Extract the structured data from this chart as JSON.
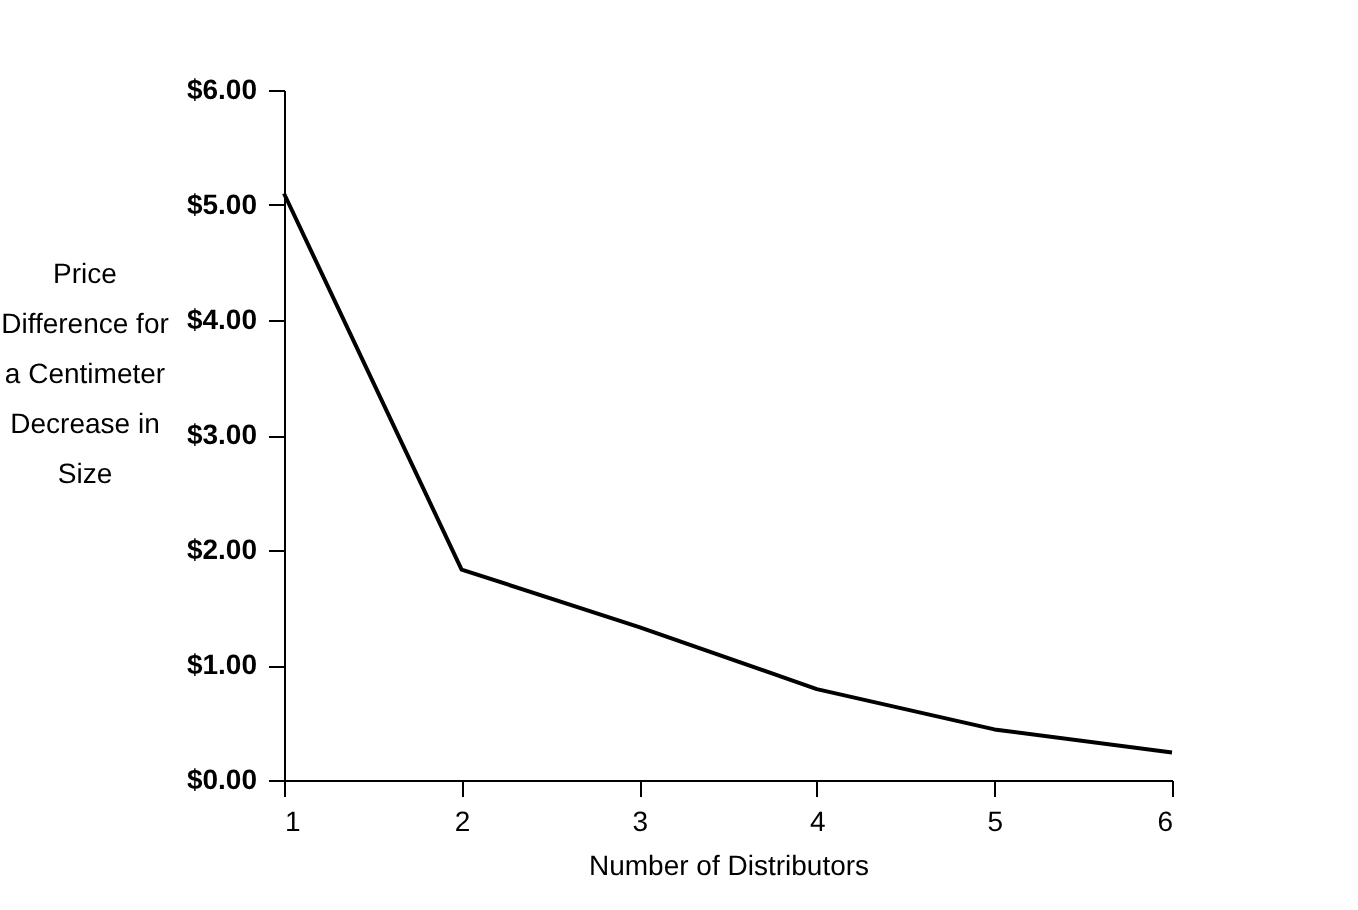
{
  "chart_data": {
    "type": "line",
    "xlabel": "Number of Distributors",
    "ylabel": "Price Difference for a Centimeter Decrease in Size",
    "x": [
      1,
      2,
      3,
      4,
      5,
      6
    ],
    "series": [
      {
        "color": "#000000",
        "values": [
          5.1,
          1.83,
          1.33,
          0.79,
          0.44,
          0.24
        ]
      }
    ],
    "xlim": [
      1,
      6
    ],
    "xticks": [
      1,
      2,
      3,
      4,
      5,
      6
    ],
    "ylim": [
      0,
      6
    ],
    "yticks": [
      {
        "value": 0,
        "label": "$0.00"
      },
      {
        "value": 1,
        "label": "$1.00"
      },
      {
        "value": 2,
        "label": "$2.00"
      },
      {
        "value": 3,
        "label": "$3.00"
      },
      {
        "value": 4,
        "label": "$4.00"
      },
      {
        "value": 5,
        "label": "$5.00"
      },
      {
        "value": 6,
        "label": "$6.00"
      }
    ],
    "grid": false,
    "marker": "none",
    "line_style": "solid"
  }
}
